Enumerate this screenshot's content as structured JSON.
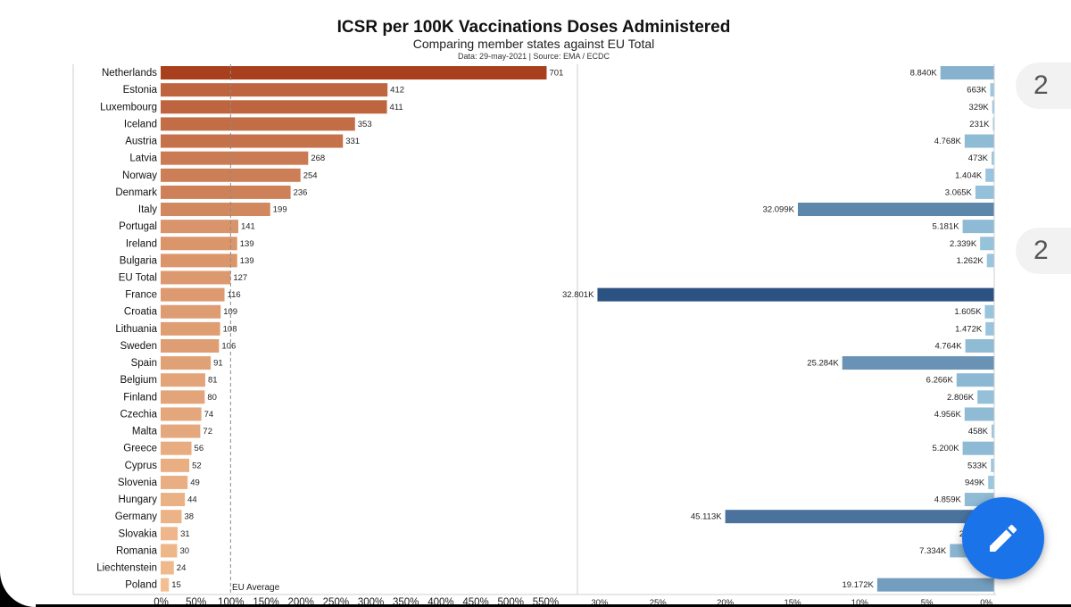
{
  "chart_data": {
    "title": "ICSR per 100K Vaccinations Doses Administered",
    "subtitle": "Comparing member states against EU Total",
    "source_note": "Data: 29-may-2021 | Source: EMA / ECDC",
    "reference_line": {
      "label": "EU Average",
      "value_percent": 100
    },
    "left_panel": {
      "type": "bar",
      "orientation": "horizontal",
      "categories": [
        "Netherlands",
        "Estonia",
        "Luxembourg",
        "Iceland",
        "Austria",
        "Latvia",
        "Norway",
        "Denmark",
        "Italy",
        "Portugal",
        "Ireland",
        "Bulgaria",
        "EU Total",
        "France",
        "Croatia",
        "Lithuania",
        "Sweden",
        "Spain",
        "Belgium",
        "Finland",
        "Czechia",
        "Malta",
        "Greece",
        "Cyprus",
        "Slovenia",
        "Hungary",
        "Germany",
        "Slovakia",
        "Romania",
        "Liechtenstein",
        "Poland"
      ],
      "values": [
        701,
        412,
        411,
        353,
        331,
        268,
        254,
        236,
        199,
        141,
        139,
        139,
        127,
        116,
        109,
        108,
        106,
        91,
        81,
        80,
        74,
        72,
        56,
        52,
        49,
        44,
        38,
        31,
        30,
        24,
        15
      ],
      "x_ticks": [
        "0%",
        "50%",
        "100%",
        "150%",
        "200%",
        "250%",
        "300%",
        "350%",
        "400%",
        "450%",
        "500%",
        "550%"
      ],
      "xlim_percent": [
        0,
        570
      ]
    },
    "right_panel": {
      "type": "bar",
      "orientation": "horizontal",
      "direction": "right-to-left",
      "labels": [
        "8.840K",
        "663K",
        "329K",
        "231K",
        "4.768K",
        "473K",
        "1.404K",
        "3.065K",
        "32.099K",
        "5.181K",
        "2.339K",
        "1.262K",
        "",
        "32.801K",
        "1.605K",
        "1.472K",
        "4.764K",
        "25.284K",
        "6.266K",
        "2.806K",
        "4.956K",
        "458K",
        "5.200K",
        "533K",
        "949K",
        "4.859K",
        "45.113K",
        "2.43",
        "7.334K",
        "",
        "19.172K"
      ],
      "values_percent": [
        4.0,
        0.3,
        0.15,
        0.1,
        2.2,
        0.2,
        0.65,
        1.4,
        14.6,
        2.35,
        1.05,
        0.55,
        null,
        29.5,
        0.7,
        0.65,
        2.15,
        11.3,
        2.8,
        1.25,
        2.2,
        0.2,
        2.35,
        0.25,
        0.45,
        2.2,
        20.0,
        1.1,
        3.3,
        null,
        8.7
      ],
      "x_ticks": [
        "30%",
        "25%",
        "20%",
        "15%",
        "10%",
        "5%",
        "0%"
      ],
      "xlim_percent": [
        0,
        31.5
      ]
    }
  },
  "side_pills": [
    "2",
    "2"
  ],
  "fab": {
    "icon": "pencil-icon"
  },
  "colors": {
    "title": "#111111",
    "dark_orange": "#a8401d",
    "light_orange": "#fdd0a2",
    "light_blue": "#9ecae1",
    "dark_blue": "#2c5283",
    "fab_blue": "#1a73e8"
  }
}
